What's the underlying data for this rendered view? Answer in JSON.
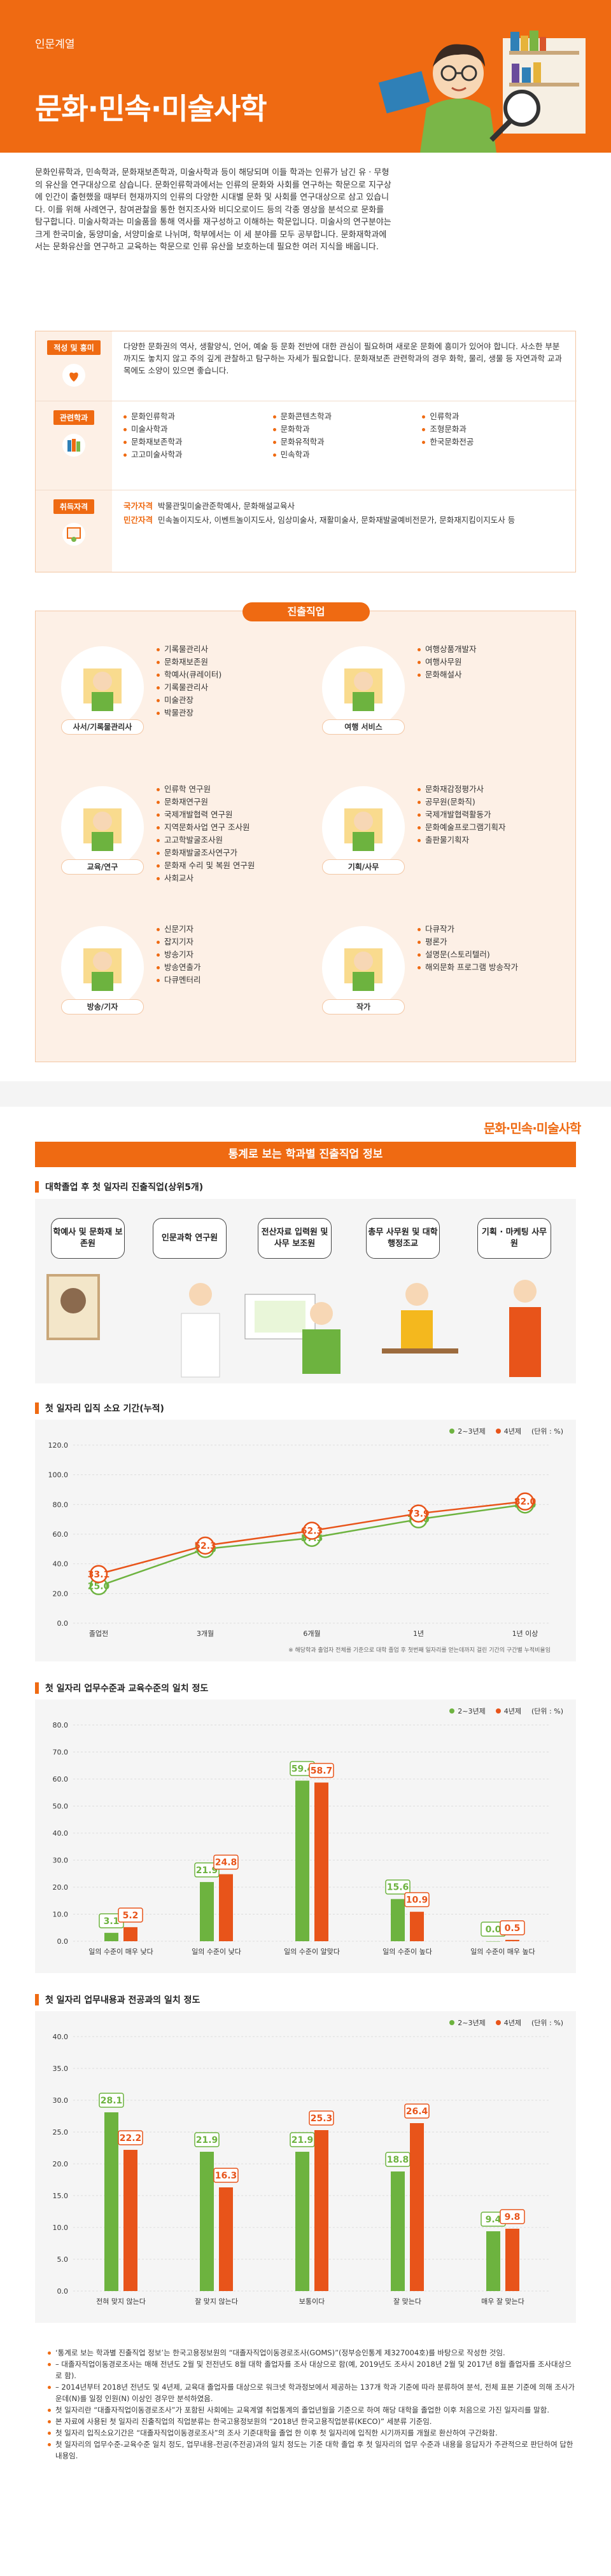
{
  "header": {
    "category": "인문계열",
    "title": "문화·민속·미술사학"
  },
  "intro": "문화인류학과, 민속학과, 문화재보존학과, 미술사학과 등이 해당되며 이들 학과는 인류가 남긴 유 · 무형의 유산을 연구대상으로 삼습니다. 문화인류학과에서는 인류의 문화와 사회를 연구하는 학문으로 지구상에 인간이 출현했을 때부터 현재까지의 인류의 다양한 시대별 문화 및 사회를 연구대상으로 삼고 있습니다. 이를 위해 사례연구, 참여관찰을 통한 현지조사와 비디오로이드 등의 각종 영상을 분석으로 문화를 탐구합니다. 미술사학과는 미술품을 통해 역사를 재구성하고 이해하는 학문입니다. 미술사의 연구분야는 크게 한국미술, 동양미술, 서양미술로 나뉘며, 학부에서는 이 세 분야를 모두 공부합니다. 문화재학과에서는 문화유산을 연구하고 교육하는 학문으로 인류 유산을 보호하는데 필요한 여러 지식을 배웁니다.",
  "aptitude": {
    "label": "적성 및 흥미",
    "text": "다양한 문화권의 역사, 생활양식, 언어, 예술 등 문화 전반에 대한 관심이 필요하며 새로운 문화에 흥미가 있어야 합니다. 사소한 부분까지도 놓치지 않고 주의 깊게 관찰하고 탐구하는 자세가 필요합니다. 문화재보존 관련학과의 경우 화학, 물리, 생물 등 자연과학 교과목에도 소양이 있으면 좋습니다."
  },
  "related": {
    "label": "관련학과",
    "col1": [
      "문화인류학과",
      "미술사학과",
      "문화재보존학과",
      "고고미술사학과"
    ],
    "col2": [
      "문화콘텐츠학과",
      "문화학과",
      "문화유적학과",
      "민속학과"
    ],
    "col3": [
      "인류학과",
      "조형문화과",
      "한국문화전공"
    ]
  },
  "certs": {
    "label": "취득자격",
    "national_key": "국가자격",
    "national_val": "박물관및미술관준학예사, 문화해설교육사",
    "private_key": "민간자격",
    "private_val": "민속놀이지도사, 이벤트놀이지도사, 임상미술사, 재활미술사, 문화재발굴예비전문가, 문화재지킴이지도사 등"
  },
  "jobs": {
    "title": "진출직업",
    "items": [
      {
        "label": "사서/기록물관리사",
        "list": [
          "기록물관리사",
          "문화재보존원",
          "학예사(큐레이터)",
          "기록물관리사",
          "미술관장",
          "박물관장"
        ]
      },
      {
        "label": "여행 서비스",
        "list": [
          "여행상품개발자",
          "여행사무원",
          "문화해설사"
        ]
      },
      {
        "label": "교육/연구",
        "list": [
          "인류학 연구원",
          "문화재연구원",
          "국제개발협력 연구원",
          "지역문화사업 연구 조사원",
          "고고학발굴조사원",
          "문화재발굴조사연구가",
          "문화재 수리 및 복원 연구원",
          "사회교사"
        ]
      },
      {
        "label": "기획/사무",
        "list": [
          "문화재감정평가사",
          "공무원(문화직)",
          "국제개발협력활동가",
          "문화예술프로그램기획자",
          "출판물기획자"
        ]
      },
      {
        "label": "방송/기자",
        "list": [
          "신문기자",
          "잡지기자",
          "방송기자",
          "방송연출가",
          "다큐멘터리"
        ]
      },
      {
        "label": "작가",
        "list": [
          "다큐작가",
          "평론가",
          "설명문(스토리텔러)",
          "해외문화 프로그램 방송작가"
        ]
      }
    ]
  },
  "section2": {
    "brand": "문화·민속·미술사학",
    "title": "통계로 보는 학과별 진출직업 정보",
    "illus_title": "대학졸업 후 첫 일자리 진출직업(상위5개)",
    "top5": [
      "학예사 및 문화재 보존원",
      "인문과학 연구원",
      "전산자료 입력원 및 사무 보조원",
      "총무 사무원 및 대학 행정조교",
      "기획 · 마케팅 사무원"
    ]
  },
  "chart_data": [
    {
      "type": "line",
      "title": "첫 일자리 입직 소요 기간(누적)",
      "unit": "(단위 : %)",
      "categories": [
        "졸업전",
        "3개월",
        "6개월",
        "1년",
        "1년 이상"
      ],
      "series": [
        {
          "name": "2~3년제",
          "values": [
            25.0,
            50.0,
            57.5,
            70.0,
            80.0
          ]
        },
        {
          "name": "4년제",
          "values": [
            33.1,
            52.3,
            62.3,
            73.9,
            82.0
          ]
        }
      ],
      "ylim": [
        0,
        120
      ],
      "yticks": [
        "0.0",
        "20.0",
        "40.0",
        "60.0",
        "80.0",
        "100.0",
        "120.0"
      ],
      "footnote": "※ 해당학과 출업자 전체를 기준으로 대학 졸업 후 첫번째 일자리를 얻는데까지 걸린 기간의 구간별 누적비율임"
    },
    {
      "type": "bar",
      "title": "첫 일자리 업무수준과 교육수준의 일치 정도",
      "unit": "(단위 : %)",
      "categories": [
        "일의 수준이 매우 낮다",
        "일의 수준이 낮다",
        "일의 수준이 알맞다",
        "일의 수준이 높다",
        "일의 수준이 매우 높다"
      ],
      "series": [
        {
          "name": "2~3년제",
          "values": [
            3.1,
            21.9,
            59.4,
            15.6,
            0.0
          ]
        },
        {
          "name": "4년제",
          "values": [
            5.2,
            24.8,
            58.7,
            10.9,
            0.5
          ]
        }
      ],
      "ylim": [
        0,
        80
      ],
      "yticks": [
        "0.0",
        "10.0",
        "20.0",
        "30.0",
        "40.0",
        "50.0",
        "60.0",
        "70.0",
        "80.0"
      ]
    },
    {
      "type": "bar",
      "title": "첫 일자리 업무내용과 전공과의 일치 정도",
      "unit": "(단위 : %)",
      "categories": [
        "전혀 맞지 않는다",
        "잘 맞지 않는다",
        "보통이다",
        "잘 맞는다",
        "매우 잘 맞는다"
      ],
      "series": [
        {
          "name": "2~3년제",
          "values": [
            28.1,
            21.9,
            21.9,
            18.8,
            9.4
          ]
        },
        {
          "name": "4년제",
          "values": [
            22.2,
            16.3,
            25.3,
            26.4,
            9.8
          ]
        }
      ],
      "ylim": [
        0,
        40
      ],
      "yticks": [
        "0.0",
        "5.0",
        "10.0",
        "15.0",
        "20.0",
        "25.0",
        "30.0",
        "35.0",
        "40.0"
      ]
    }
  ],
  "notes": [
    "‘통계로 보는 학과별 진출직업 정보’는 한국고용정보원의 “대졸자직업이동경로조사(GOMS)”(정부승인통계 제327004호)를 바탕으로 작성한 것임.",
    "– 대졸자직업이동경로조사는 매해 전년도 2월 및 전전년도 8월 대학 졸업자를 조사 대상으로 함(예, 2019년도 조사시 2018년 2월 및 2017년 8월 졸업자를 조사대상으로 함).",
    "– 2014년부터 2018년 전년도 및 4년제, 교육대 졸업자를 대상으로 워크넷 학과정보에서 제공하는 137개 학과 기준에 따라 분류하여 분석, 전체 표본 기준에 의해 조사가운데(N)를 일정 인원(N) 이상인 경우만 분석하였음.",
    "첫 일자리란 “대졸자직업이동경로조사”가 포함된 사회에는 교육계열 취업통계의 졸업년월을 기준으로 하여 해당 대학을 졸업한 이후 처음으로 가진 일자리를 말함.",
    "본 자료에 사용된 첫 일자리 진출직업의 직업분류는 한국고용정보원의 “2018년 한국고용직업분류(KECO)” 세분류 기준임.",
    "첫 일자리 입직소요기간은 “대졸자직업이동경로조사”의 조사 기준대학을 졸업 한 이후 첫 일자리에 입직한 시기까지를 개월로 환산하여 구간화함.",
    "첫 일자리의 업무수준-교육수준 일치 정도, 업무내용-전공(주전공)과의 일치 정도는 기준 대학 졸업 후 첫 일자리의 업무 수준과 내용을 응답자가 주관적으로 판단하여 답한 내용임."
  ],
  "colors": {
    "accent": "#ef6a12",
    "green": "#6db33f",
    "orange": "#e8541a"
  }
}
